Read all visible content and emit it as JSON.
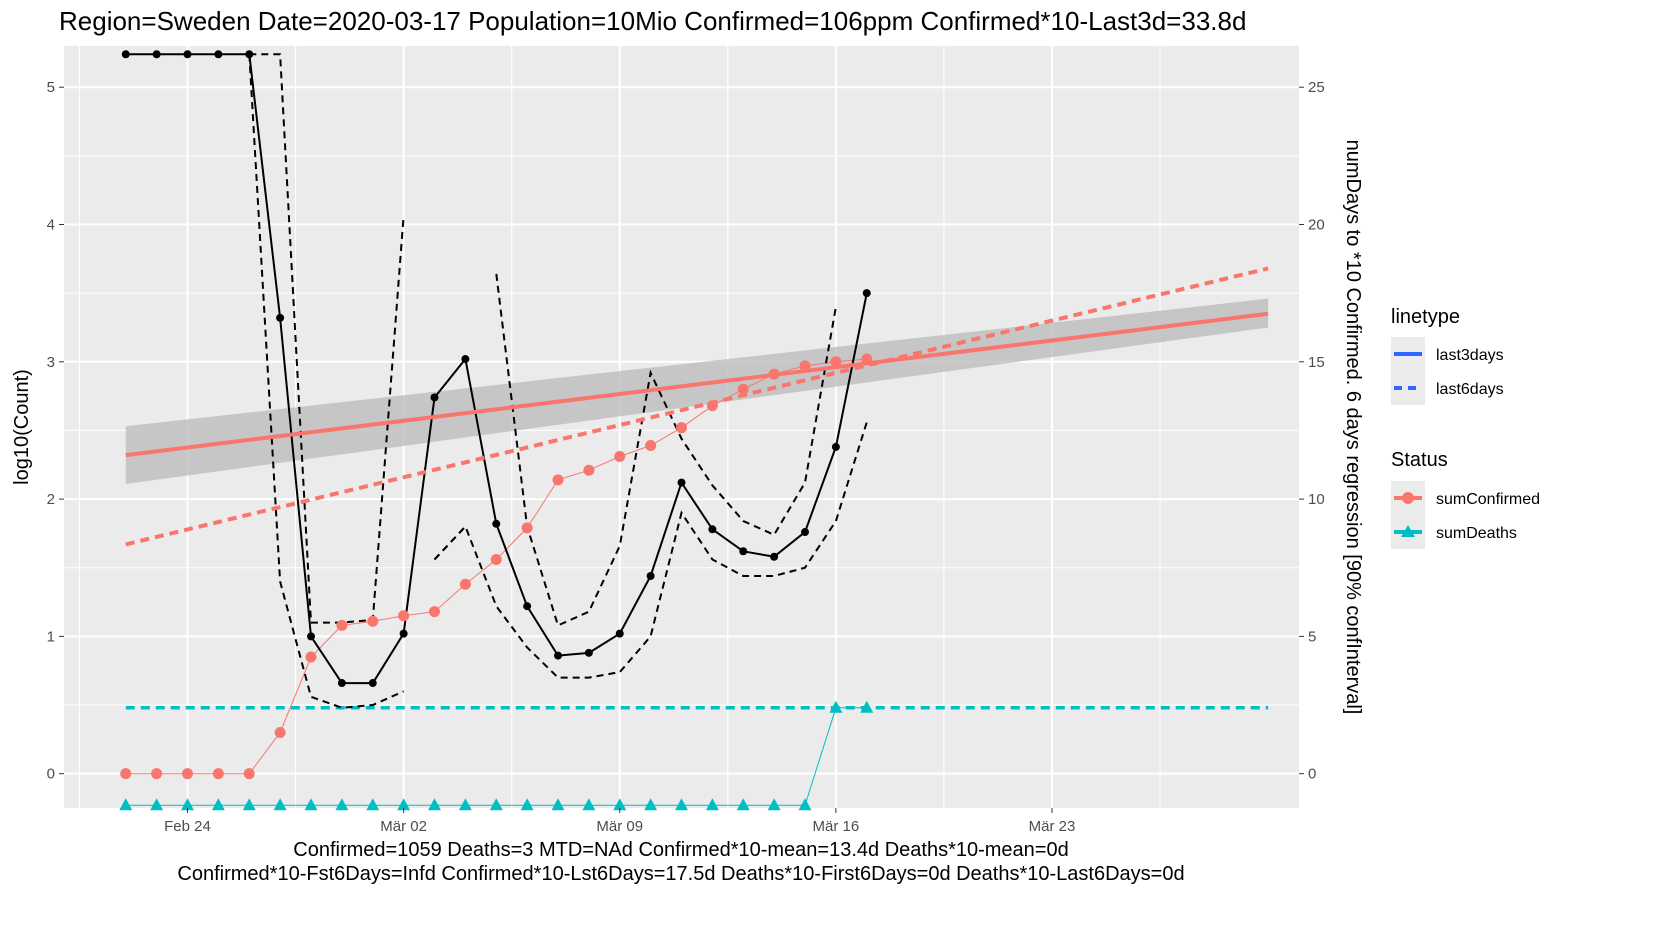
{
  "chart_data": {
    "type": "line",
    "title": "Region=Sweden Date=2020-03-17  Population=10Mio Confirmed=106ppm  Confirmed*10-Last3d=33.8d",
    "footer_lines": [
      "Confirmed=1059 Deaths=3  MTD=NAd   Confirmed*10-mean=13.4d  Deaths*10-mean=0d",
      "Confirmed*10-Fst6Days=Infd  Confirmed*10-Lst6Days=17.5d    Deaths*10-First6Days=0d  Deaths*10-Last6Days=0d"
    ],
    "xlabel": "",
    "ylabel": "log10(Count)",
    "y2label": "numDays to *10 Confirmed. 6 days regression [90% confInterval]",
    "x_ticks": [
      {
        "date": "2020-02-24",
        "label": "Feb 24"
      },
      {
        "date": "2020-03-02",
        "label": "Mär 02"
      },
      {
        "date": "2020-03-09",
        "label": "Mär 09"
      },
      {
        "date": "2020-03-16",
        "label": "Mär 16"
      },
      {
        "date": "2020-03-23",
        "label": "Mär 23"
      }
    ],
    "xlim": [
      "2020-02-20",
      "2020-03-31"
    ],
    "ylim": [
      -0.25,
      5.3
    ],
    "y_ticks": [
      0,
      1,
      2,
      3,
      4,
      5
    ],
    "y2lim": [
      -1.25,
      26.5
    ],
    "y2_ticks": [
      0,
      5,
      10,
      15,
      20,
      25
    ],
    "grid": true,
    "legend_position": "right",
    "legend": {
      "linetype": {
        "title": "linetype",
        "entries": [
          {
            "label": "last3days",
            "dash": "solid"
          },
          {
            "label": "last6days",
            "dash": "dashed"
          }
        ]
      },
      "status": {
        "title": "Status",
        "entries": [
          {
            "label": "sumConfirmed",
            "color": "#f8766d",
            "marker": "circle"
          },
          {
            "label": "sumDeaths",
            "color": "#00bfc4",
            "marker": "triangle"
          }
        ]
      }
    },
    "series": [
      {
        "name": "sumConfirmed",
        "color": "#f8766d",
        "marker": "circle",
        "x": [
          "2020-02-22",
          "2020-02-23",
          "2020-02-24",
          "2020-02-25",
          "2020-02-26",
          "2020-02-27",
          "2020-02-28",
          "2020-02-29",
          "2020-03-01",
          "2020-03-02",
          "2020-03-03",
          "2020-03-04",
          "2020-03-05",
          "2020-03-06",
          "2020-03-07",
          "2020-03-08",
          "2020-03-09",
          "2020-03-10",
          "2020-03-11",
          "2020-03-12",
          "2020-03-13",
          "2020-03-14",
          "2020-03-15",
          "2020-03-16",
          "2020-03-17"
        ],
        "y": [
          0,
          0,
          0,
          0,
          0,
          0.3,
          0.85,
          1.08,
          1.11,
          1.15,
          1.18,
          1.38,
          1.56,
          1.79,
          2.14,
          2.21,
          2.31,
          2.39,
          2.52,
          2.68,
          2.8,
          2.91,
          2.97,
          3.0,
          3.02
        ]
      },
      {
        "name": "sumDeaths",
        "color": "#00bfc4",
        "marker": "triangle",
        "x": [
          "2020-02-22",
          "2020-02-23",
          "2020-02-24",
          "2020-02-25",
          "2020-02-26",
          "2020-02-27",
          "2020-02-28",
          "2020-02-29",
          "2020-03-01",
          "2020-03-02",
          "2020-03-03",
          "2020-03-04",
          "2020-03-05",
          "2020-03-06",
          "2020-03-07",
          "2020-03-08",
          "2020-03-09",
          "2020-03-10",
          "2020-03-11",
          "2020-03-12",
          "2020-03-13",
          "2020-03-14",
          "2020-03-15",
          "2020-03-16",
          "2020-03-17"
        ],
        "y": [
          -0.23,
          -0.23,
          -0.23,
          -0.23,
          -0.23,
          -0.23,
          -0.23,
          -0.23,
          -0.23,
          -0.23,
          -0.23,
          -0.23,
          -0.23,
          -0.23,
          -0.23,
          -0.23,
          -0.23,
          -0.23,
          -0.23,
          -0.23,
          -0.23,
          -0.23,
          -0.23,
          0.48,
          0.48
        ]
      },
      {
        "name": "",
        "axis": "right",
        "color": "#000000",
        "marker": "circle",
        "dash": "solid",
        "x": [
          "2020-02-22",
          "2020-02-23",
          "2020-02-24",
          "2020-02-25",
          "2020-02-26",
          "2020-02-27",
          "2020-02-28",
          "2020-02-29",
          "2020-03-01",
          "2020-03-02",
          "2020-03-03",
          "2020-03-04",
          "2020-03-05",
          "2020-03-06",
          "2020-03-07",
          "2020-03-08",
          "2020-03-09",
          "2020-03-10",
          "2020-03-11",
          "2020-03-12",
          "2020-03-13",
          "2020-03-14",
          "2020-03-15",
          "2020-03-16",
          "2020-03-17"
        ],
        "y": [
          26.2,
          26.2,
          26.2,
          26.2,
          26.2,
          16.6,
          5.0,
          3.3,
          3.3,
          5.1,
          13.7,
          15.1,
          9.1,
          6.1,
          4.3,
          4.4,
          5.1,
          7.2,
          10.6,
          8.9,
          8.1,
          7.9,
          8.8,
          11.9,
          17.5
        ]
      },
      {
        "name": "",
        "axis": "right",
        "color": "#000000",
        "marker": "none",
        "dash": "dashed",
        "x": [
          "2020-02-26",
          "2020-02-27",
          "2020-02-28",
          "2020-02-29",
          "2020-03-01",
          "2020-03-02"
        ],
        "y": [
          26.2,
          7.0,
          2.8,
          2.4,
          2.5,
          3.0
        ]
      },
      {
        "name": "",
        "axis": "right",
        "color": "#000000",
        "marker": "none",
        "dash": "dashed",
        "x": [
          "2020-02-26",
          "2020-02-27",
          "2020-02-28",
          "2020-02-29",
          "2020-03-01",
          "2020-03-02"
        ],
        "y": [
          26.2,
          26.2,
          5.5,
          5.5,
          5.6,
          20.3
        ]
      },
      {
        "name": "",
        "axis": "right",
        "color": "#000000",
        "marker": "none",
        "dash": "dashed",
        "x": [
          "2020-03-03",
          "2020-03-04",
          "2020-03-05",
          "2020-03-06",
          "2020-03-07",
          "2020-03-08",
          "2020-03-09",
          "2020-03-10",
          "2020-03-11",
          "2020-03-12",
          "2020-03-13",
          "2020-03-14",
          "2020-03-15",
          "2020-03-16",
          "2020-03-17"
        ],
        "y": [
          7.8,
          9.0,
          6.1,
          4.6,
          3.5,
          3.5,
          3.7,
          5.0,
          9.5,
          7.8,
          7.2,
          7.2,
          7.5,
          9.2,
          12.8
        ]
      },
      {
        "name": "",
        "axis": "right",
        "color": "#000000",
        "marker": "none",
        "dash": "dashed",
        "x": [
          "2020-03-03",
          "2020-03-04"
        ],
        "y": [
          7.8,
          9.0
        ]
      },
      {
        "name": "",
        "axis": "right",
        "color": "#000000",
        "marker": "none",
        "dash": "dashed",
        "x": [
          "2020-03-05",
          "2020-03-06",
          "2020-03-07",
          "2020-03-08",
          "2020-03-09",
          "2020-03-10",
          "2020-03-11",
          "2020-03-12",
          "2020-03-13",
          "2020-03-14",
          "2020-03-15",
          "2020-03-16"
        ],
        "y": [
          18.2,
          9.0,
          5.4,
          5.9,
          8.3,
          14.6,
          12.2,
          10.5,
          9.2,
          8.7,
          10.6,
          17.0
        ]
      }
    ],
    "regressions": [
      {
        "label": "last3days",
        "color": "#f8766d",
        "dash": "solid",
        "x": [
          "2020-02-22",
          "2020-03-30"
        ],
        "y": [
          2.32,
          3.35
        ],
        "ci_lower": [
          2.11,
          3.25
        ],
        "ci_upper": [
          2.53,
          3.46
        ]
      },
      {
        "label": "last6days",
        "color": "#f8766d",
        "dash": "dashed",
        "x": [
          "2020-02-22",
          "2020-03-30"
        ],
        "y": [
          1.67,
          3.68
        ]
      }
    ],
    "hlines": [
      {
        "y": 0.48,
        "color": "#00bfc4",
        "dash": "dashed",
        "x_from": "2020-02-22",
        "x_to": "2020-03-30"
      }
    ]
  }
}
